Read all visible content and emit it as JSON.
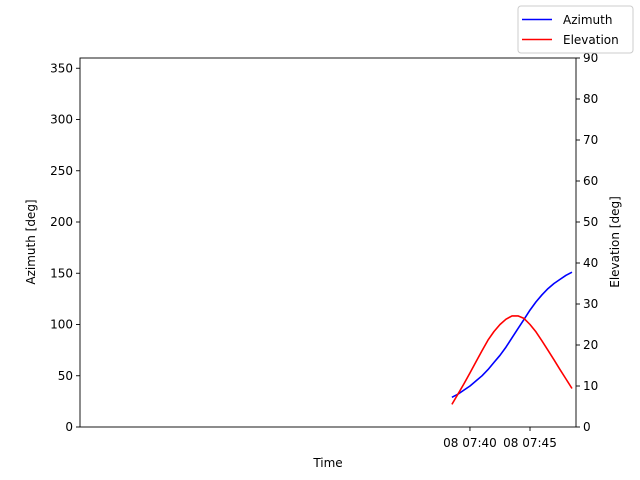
{
  "chart_data": {
    "type": "line",
    "xlabel": "Time",
    "ylabel_left": "Azimuth [deg]",
    "ylabel_right": "Elevation [deg]",
    "xlim_minutes": [
      7.53,
      48.83
    ],
    "x_ticks": [
      {
        "value": 40,
        "label": "08 07:40"
      },
      {
        "value": 45,
        "label": "08 07:45"
      }
    ],
    "ylim_left": [
      0,
      360
    ],
    "yticks_left": [
      0,
      50,
      100,
      150,
      200,
      250,
      300,
      350
    ],
    "ylim_right": [
      0,
      90
    ],
    "yticks_right": [
      0,
      10,
      20,
      30,
      40,
      50,
      60,
      70,
      80,
      90
    ],
    "grid": false,
    "legend": "top-right",
    "series": [
      {
        "name": "Azimuth",
        "color": "#0000ff",
        "axis": "left",
        "x": [
          38.5,
          39.0,
          39.5,
          40.0,
          40.5,
          41.0,
          41.5,
          42.0,
          42.5,
          43.0,
          43.5,
          44.0,
          44.5,
          45.0,
          45.5,
          46.0,
          46.5,
          47.0,
          47.5,
          48.0,
          48.5
        ],
        "values": [
          29,
          32,
          36,
          40,
          45,
          50,
          56,
          63,
          70,
          78,
          87,
          96,
          105,
          114,
          122,
          129,
          135,
          140,
          144,
          148,
          151
        ]
      },
      {
        "name": "Elevation",
        "color": "#ff0000",
        "axis": "right",
        "x": [
          38.5,
          39.0,
          39.5,
          40.0,
          40.5,
          41.0,
          41.5,
          42.0,
          42.5,
          43.0,
          43.5,
          44.0,
          44.5,
          45.0,
          45.5,
          46.0,
          46.5,
          47.0,
          47.5,
          48.0,
          48.5
        ],
        "values": [
          5.5,
          8.0,
          10.5,
          13.2,
          15.9,
          18.6,
          21.2,
          23.3,
          25.0,
          26.3,
          27.1,
          27.1,
          26.5,
          25.0,
          23.2,
          21.0,
          18.7,
          16.4,
          14.0,
          11.7,
          9.4
        ]
      }
    ]
  }
}
